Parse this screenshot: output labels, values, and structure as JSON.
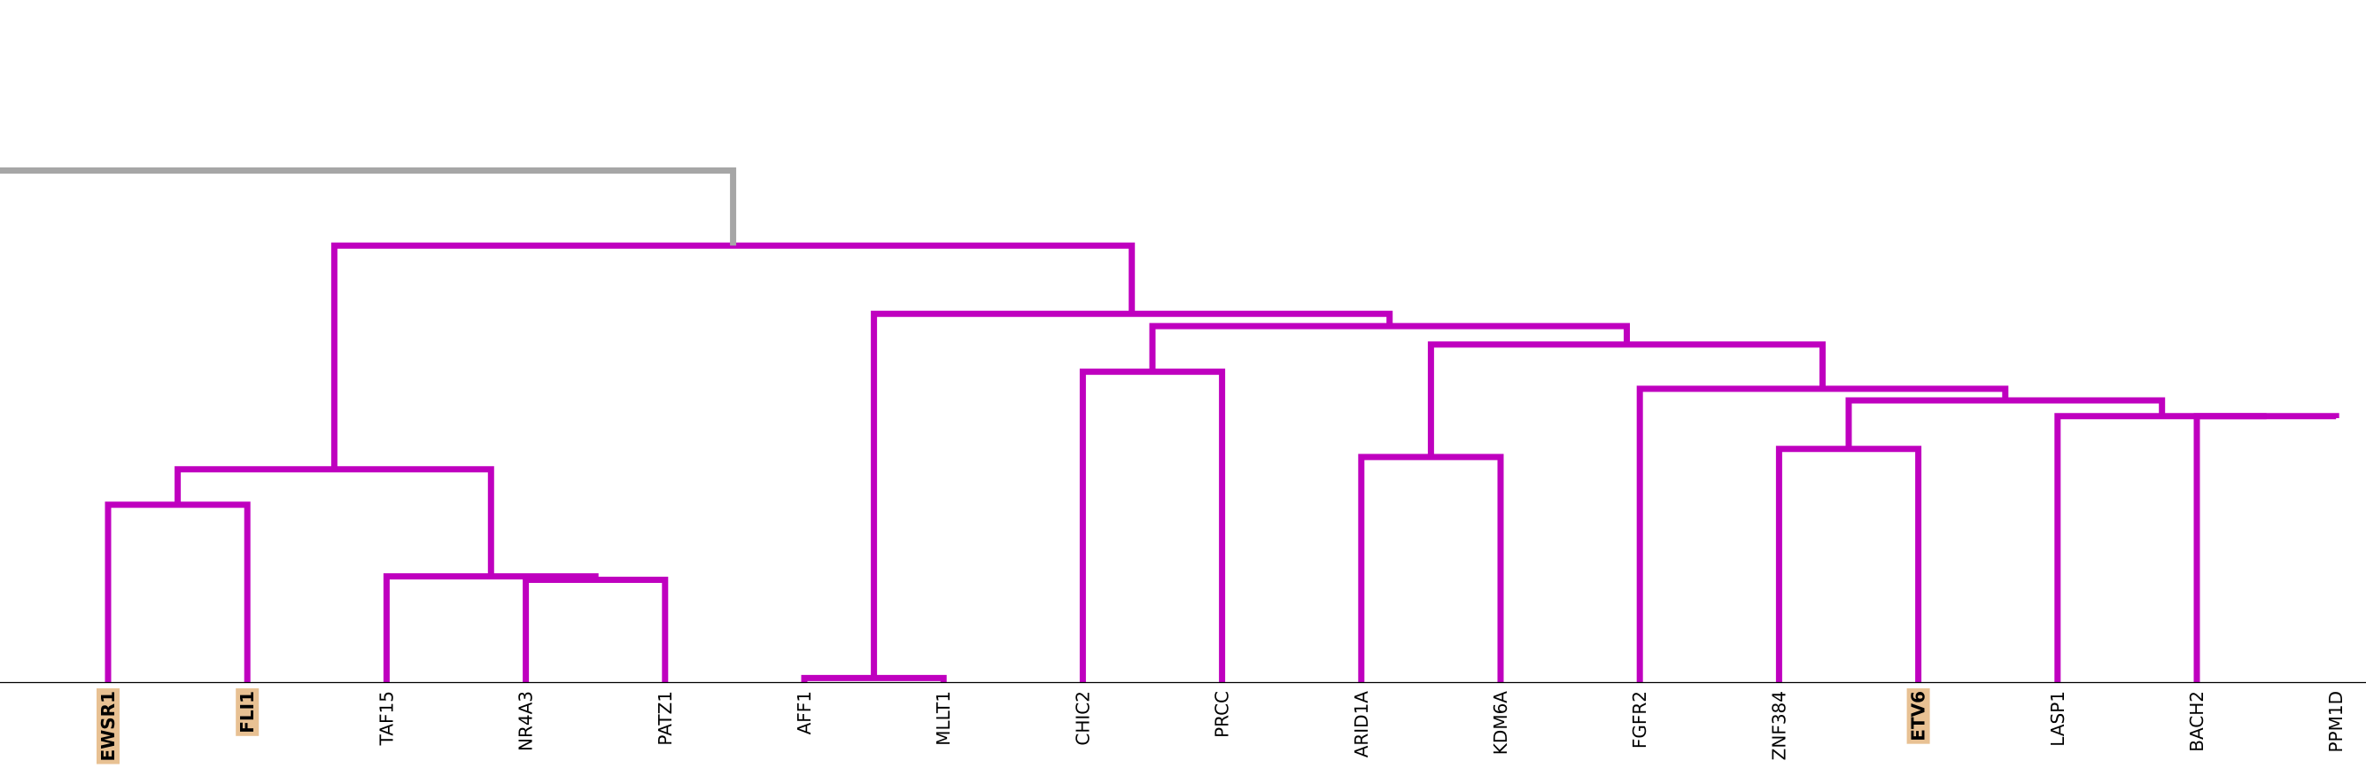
{
  "chart_data": {
    "type": "dendrogram",
    "title": "",
    "xlabel": "",
    "ylabel": "",
    "leaves": [
      {
        "name": "EWSR1",
        "highlight": true
      },
      {
        "name": "FLI1",
        "highlight": true
      },
      {
        "name": "TAF15",
        "highlight": false
      },
      {
        "name": "NR4A3",
        "highlight": false
      },
      {
        "name": "PATZ1",
        "highlight": false
      },
      {
        "name": "AFF1",
        "highlight": false
      },
      {
        "name": "MLLT1",
        "highlight": false
      },
      {
        "name": "CHIC2",
        "highlight": false
      },
      {
        "name": "PRCC",
        "highlight": false
      },
      {
        "name": "ARID1A",
        "highlight": false
      },
      {
        "name": "KDM6A",
        "highlight": false
      },
      {
        "name": "FGFR2",
        "highlight": false
      },
      {
        "name": "ZNF384",
        "highlight": false
      },
      {
        "name": "ETV6",
        "highlight": true
      },
      {
        "name": "LASP1",
        "highlight": false
      },
      {
        "name": "BACH2",
        "highlight": false
      },
      {
        "name": "PPM1D",
        "highlight": false
      }
    ],
    "links": [
      {
        "color": "#bf00bf",
        "icoord": [
          1,
          1,
          2,
          2
        ],
        "height": [
          0,
          0.26,
          0.26,
          0
        ]
      },
      {
        "color": "#bf00bf",
        "icoord": [
          4,
          4,
          5,
          5
        ],
        "height": [
          0,
          0.15,
          0.15,
          0
        ]
      },
      {
        "color": "#bf00bf",
        "icoord": [
          3,
          3,
          4.5,
          4.5
        ],
        "height": [
          0,
          0.155,
          0.155,
          0.15
        ]
      },
      {
        "color": "#bf00bf",
        "icoord": [
          1.5,
          1.5,
          3.75,
          3.75
        ],
        "height": [
          0.26,
          0.312,
          0.312,
          0.155
        ]
      },
      {
        "color": "#bf00bf",
        "icoord": [
          6,
          6,
          7,
          7
        ],
        "height": [
          0,
          0.006,
          0.006,
          0
        ]
      },
      {
        "color": "#bf00bf",
        "icoord": [
          8,
          8,
          9,
          9
        ],
        "height": [
          0,
          0.455,
          0.455,
          0
        ]
      },
      {
        "color": "#bf00bf",
        "icoord": [
          10,
          10,
          11,
          11
        ],
        "height": [
          0,
          0.33,
          0.33,
          0
        ]
      },
      {
        "color": "#bf00bf",
        "icoord": [
          13,
          13,
          14,
          14
        ],
        "height": [
          0,
          0.342,
          0.342,
          0
        ]
      },
      {
        "color": "#bf00bf",
        "icoord": [
          16,
          16,
          17,
          17
        ],
        "height": [
          0,
          0.39,
          0.39,
          0.387
        ]
      },
      {
        "color": "#bf00bf",
        "icoord": [
          15,
          15,
          16.5,
          16.5
        ],
        "height": [
          0,
          0.39,
          0.39,
          0.39
        ]
      },
      {
        "color": "#bf00bf",
        "icoord": [
          13.5,
          13.5,
          15.75,
          15.75
        ],
        "height": [
          0.342,
          0.413,
          0.413,
          0.39
        ]
      },
      {
        "color": "#bf00bf",
        "icoord": [
          12,
          12,
          14.625,
          14.625
        ],
        "height": [
          0,
          0.43,
          0.43,
          0.413
        ]
      },
      {
        "color": "#bf00bf",
        "icoord": [
          10.5,
          10.5,
          13.3125,
          13.3125
        ],
        "height": [
          0.33,
          0.495,
          0.495,
          0.43
        ]
      },
      {
        "color": "#bf00bf",
        "icoord": [
          8.5,
          8.5,
          11.90625,
          11.90625
        ],
        "height": [
          0.455,
          0.522,
          0.522,
          0.495
        ]
      },
      {
        "color": "#bf00bf",
        "icoord": [
          6.5,
          6.5,
          10.203125,
          10.203125
        ],
        "height": [
          0.006,
          0.54,
          0.54,
          0.522
        ]
      },
      {
        "color": "#bf00bf",
        "icoord": [
          2.625,
          2.625,
          8.3515625,
          8.3515625
        ],
        "height": [
          0.312,
          0.64,
          0.64,
          0.54
        ]
      },
      {
        "color": "#a6a6a6",
        "icoord": [
          -7,
          -7,
          5.48828125,
          5.48828125
        ],
        "height": [
          0.75,
          0.75,
          0.75,
          0.64
        ]
      },
      {
        "color": "#a6a6a6",
        "icoord": [
          -7,
          -7,
          -1.76,
          -1.76
        ],
        "height": [
          0.8,
          0.8,
          0.8,
          0.75
        ]
      }
    ],
    "ylim": [
      0,
      1
    ],
    "grid": false,
    "legend": "none",
    "colors": {
      "cluster": "#bf00bf",
      "above_threshold": "#a6a6a6",
      "axis": "#000000",
      "highlight_background": "#e8c193"
    }
  }
}
